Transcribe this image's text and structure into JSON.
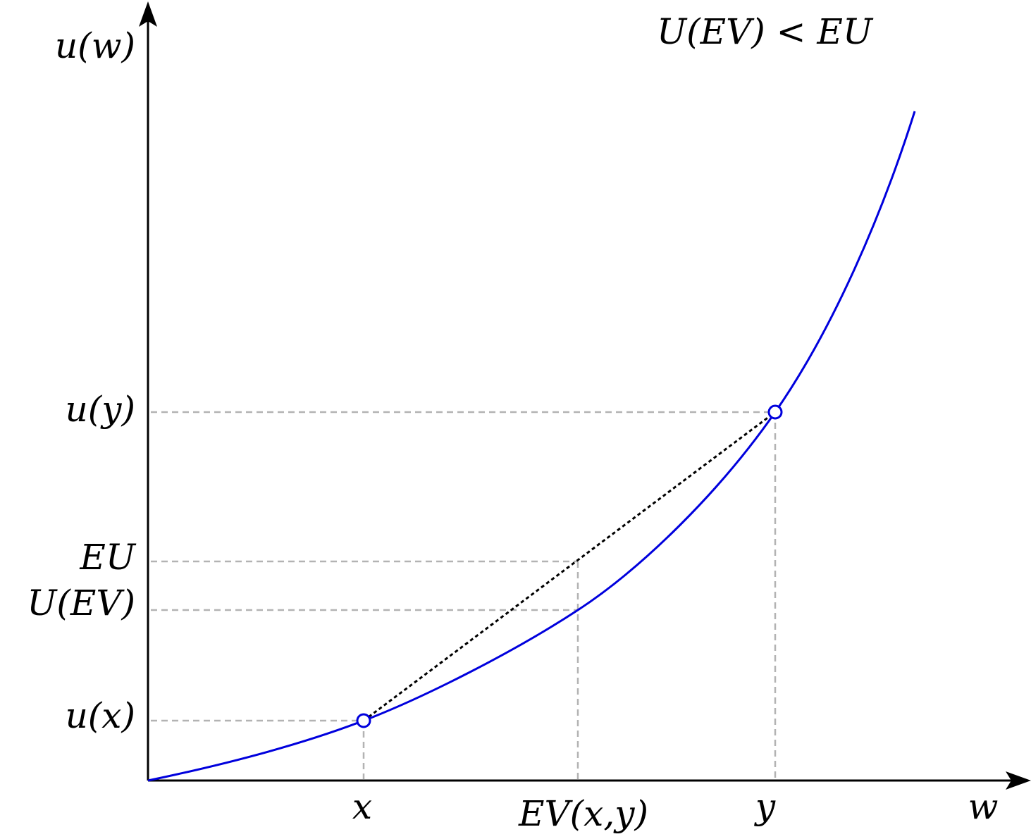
{
  "title": "U(EV) < EU",
  "axes": {
    "y_label": "u(w)",
    "x_label": "w"
  },
  "y_labels": [
    "u(y)",
    "EU",
    "U(EV)",
    "u(x)"
  ],
  "x_labels": [
    "x",
    "EV(x,y)",
    "y"
  ]
}
